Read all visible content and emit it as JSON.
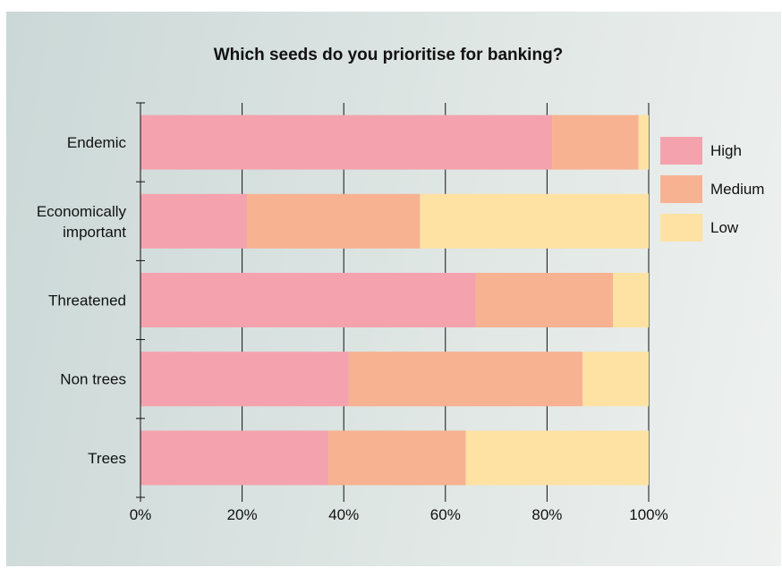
{
  "chart_data": {
    "type": "bar",
    "orientation": "horizontal",
    "stacked": true,
    "title": "Which seeds do you prioritise for banking?",
    "xlabel": "",
    "ylabel": "",
    "xlim": [
      0,
      100
    ],
    "x_ticks": [
      "0%",
      "20%",
      "40%",
      "60%",
      "80%",
      "100%"
    ],
    "categories": [
      "Endemic",
      "Economically important",
      "Threatened",
      "Non trees",
      "Trees"
    ],
    "series": [
      {
        "name": "High",
        "color": "#f4a3ae",
        "values": [
          81,
          21,
          66,
          41,
          37
        ]
      },
      {
        "name": "Medium",
        "color": "#f7b291",
        "values": [
          17,
          34,
          27,
          46,
          27
        ]
      },
      {
        "name": "Low",
        "color": "#fde2a3",
        "values": [
          2,
          45,
          7,
          13,
          36
        ]
      }
    ],
    "grid": true,
    "legend_position": "right"
  }
}
